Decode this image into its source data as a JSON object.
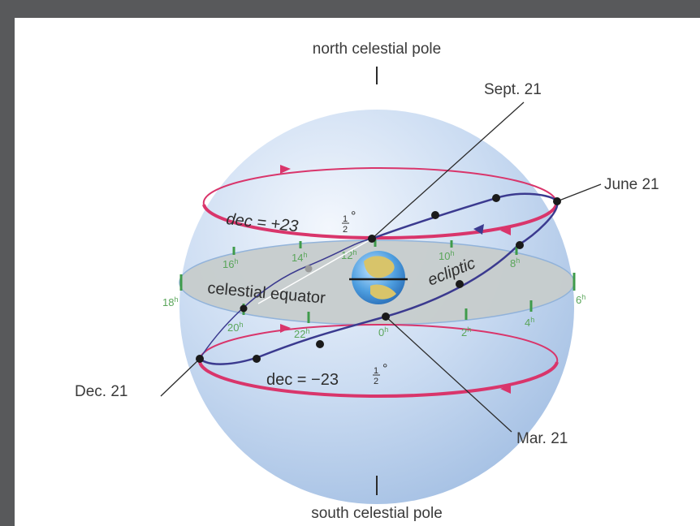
{
  "labels": {
    "north_pole": "north celestial pole",
    "south_pole": "south celestial pole",
    "sept": "Sept. 21",
    "june": "June 21",
    "dec": "Dec. 21",
    "mar": "Mar. 21",
    "equator": "celestial equator",
    "ecliptic": "ecliptic",
    "dec_north_prefix": "dec = +23",
    "dec_south_prefix": "dec = −23",
    "frac_num": "1",
    "frac_den": "2",
    "degree": "°"
  },
  "hours": [
    {
      "h": "16",
      "name": "hour-16"
    },
    {
      "h": "14",
      "name": "hour-14"
    },
    {
      "h": "12",
      "name": "hour-12"
    },
    {
      "h": "10",
      "name": "hour-10"
    },
    {
      "h": "8",
      "name": "hour-8"
    },
    {
      "h": "18",
      "name": "hour-18"
    },
    {
      "h": "6",
      "name": "hour-6"
    },
    {
      "h": "20",
      "name": "hour-20"
    },
    {
      "h": "22",
      "name": "hour-22"
    },
    {
      "h": "0",
      "name": "hour-0"
    },
    {
      "h": "2",
      "name": "hour-2"
    },
    {
      "h": "4",
      "name": "hour-4"
    }
  ],
  "hour_suffix": "h",
  "colors": {
    "sphere_light": "#eef3fb",
    "sphere_dark": "#a9c4e6",
    "equator_plane": "#c9cfcf",
    "equator_edge": "#8fb1d9",
    "tropic": "#d9356b",
    "ecliptic": "#3b3a8f",
    "hour_ticks": "#3f9b4b",
    "leader": "#2b2b2b"
  }
}
